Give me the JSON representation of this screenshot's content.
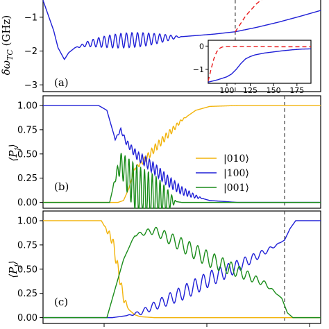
{
  "chart_data": [
    {
      "panel": "a",
      "type": "line",
      "panel_label": "(a)",
      "ylabel": "δω_TC (GHz)",
      "ylim": [
        -3.2,
        -0.45
      ],
      "yticks": [
        -3,
        -2,
        -1
      ],
      "xlim": [
        60,
        190
      ],
      "vline_x": 150,
      "colors": {
        "blue": "#1f1fd6",
        "red": "#e8191b"
      },
      "series": [
        {
          "color_key": "blue",
          "style": "solid",
          "x": [
            60,
            65,
            67,
            70,
            72,
            75,
            78,
            80,
            85,
            90,
            100,
            110,
            120,
            130,
            140,
            150,
            160,
            170,
            180,
            190
          ],
          "y": [
            -0.5,
            -1.4,
            -1.9,
            -2.25,
            -2.05,
            -1.9,
            -1.85,
            -1.8,
            -1.75,
            -1.72,
            -1.68,
            -1.65,
            -1.6,
            -1.55,
            -1.5,
            -1.43,
            -1.3,
            -1.15,
            -0.98,
            -0.8
          ],
          "osc_start": 75,
          "osc_end": 125,
          "osc_amp": 0.22,
          "osc_period": 2.6
        }
      ],
      "extra_series": [
        {
          "color_key": "red",
          "style": "dashed",
          "x": [
            150,
            155,
            160,
            163
          ],
          "y": [
            -1.43,
            -0.95,
            -0.6,
            -0.45
          ]
        }
      ],
      "inset": {
        "xlim": [
          80,
          190
        ],
        "ylim": [
          -1.6,
          0.25
        ],
        "xticks": [
          100,
          125,
          150,
          175
        ],
        "yticks": [
          -1,
          0
        ],
        "series": [
          {
            "color_key": "blue",
            "style": "solid",
            "x": [
              80,
              90,
              100,
              105,
              110,
              115,
              120,
              125,
              130,
              140,
              150,
              160,
              170,
              180,
              190
            ],
            "y": [
              -1.55,
              -1.45,
              -1.32,
              -1.2,
              -1.0,
              -0.75,
              -0.55,
              -0.45,
              -0.38,
              -0.3,
              -0.25,
              -0.2,
              -0.16,
              -0.13,
              -0.12
            ]
          },
          {
            "color_key": "red",
            "style": "dashed",
            "x": [
              80,
              83,
              86,
              89,
              92,
              95,
              100,
              110,
              130,
              150,
              170,
              190
            ],
            "y": [
              -1.5,
              -1.0,
              -0.55,
              -0.25,
              -0.1,
              -0.04,
              -0.02,
              -0.02,
              -0.02,
              -0.03,
              -0.03,
              -0.03
            ]
          }
        ]
      }
    },
    {
      "panel": "b",
      "type": "line",
      "panel_label": "(b)",
      "ylabel": "⟨P_j⟩",
      "ylim": [
        -0.06,
        1.1
      ],
      "yticks": [
        0.0,
        0.25,
        0.5,
        0.75,
        1.0
      ],
      "ytick_labels": [
        "0.00",
        "0.25",
        "0.50",
        "0.75",
        "1.00"
      ],
      "xlim": [
        0,
        100
      ],
      "vline_x": 87,
      "legend": {
        "placement": "right",
        "entries": [
          {
            "label": "|010⟩",
            "color_key": "orange"
          },
          {
            "label": "|100⟩",
            "color_key": "blue"
          },
          {
            "label": "|001⟩",
            "color_key": "green"
          }
        ]
      },
      "colors": {
        "orange": "#f2b40c",
        "blue": "#1f1fd6",
        "green": "#1a8c1a"
      },
      "series": [
        {
          "color_key": "orange",
          "x": [
            0,
            27,
            29,
            31,
            33,
            35,
            37,
            40,
            45,
            50,
            55,
            60,
            70,
            80,
            90,
            100
          ],
          "y": [
            0.0,
            0.0,
            0.02,
            0.15,
            0.35,
            0.4,
            0.45,
            0.55,
            0.7,
            0.85,
            0.95,
            0.99,
            1.0,
            1.0,
            1.0,
            1.0
          ],
          "osc_start": 31,
          "osc_end": 52,
          "osc_amp": 0.04,
          "osc_period": 1.3
        },
        {
          "color_key": "blue",
          "x": [
            0,
            20,
            23,
            26,
            28,
            30,
            32,
            34,
            37,
            40,
            45,
            50,
            55,
            60,
            70,
            100
          ],
          "y": [
            1.0,
            1.0,
            0.95,
            0.65,
            0.75,
            0.62,
            0.55,
            0.48,
            0.42,
            0.35,
            0.22,
            0.12,
            0.06,
            0.02,
            0.0,
            0.0
          ],
          "osc_start": 25,
          "osc_end": 58,
          "osc_amp": 0.06,
          "osc_period": 1.3
        },
        {
          "color_key": "green",
          "x": [
            0,
            24,
            26,
            28,
            30,
            32,
            34,
            36,
            38,
            40,
            45,
            50,
            100
          ],
          "y": [
            0.0,
            0.0,
            0.25,
            0.4,
            0.3,
            0.2,
            0.12,
            0.07,
            0.05,
            0.04,
            0.02,
            0.0,
            0.0
          ],
          "osc_start": 25,
          "osc_end": 48,
          "osc_amp": 0.28,
          "osc_period": 1.4
        }
      ]
    },
    {
      "panel": "c",
      "type": "line",
      "panel_label": "(c)",
      "ylabel": "⟨P_j⟩",
      "ylim": [
        -0.06,
        1.1
      ],
      "yticks": [
        0.0,
        0.25,
        0.5,
        0.75,
        1.0
      ],
      "ytick_labels": [
        "0.00",
        "0.25",
        "0.50",
        "0.75",
        "1.00"
      ],
      "xlim": [
        0,
        100
      ],
      "vline_x": 87,
      "colors": {
        "orange": "#f2b40c",
        "blue": "#1f1fd6",
        "green": "#1a8c1a"
      },
      "series": [
        {
          "color_key": "orange",
          "x": [
            0,
            21,
            23,
            25,
            27,
            29,
            31,
            33,
            35,
            40,
            100
          ],
          "y": [
            1.0,
            1.0,
            0.9,
            0.8,
            0.5,
            0.2,
            0.08,
            0.03,
            0.01,
            0.0,
            0.0
          ],
          "osc_start": 22,
          "osc_end": 31,
          "osc_amp": 0.06,
          "osc_period": 1.5
        },
        {
          "color_key": "blue",
          "x": [
            0,
            25,
            30,
            35,
            40,
            50,
            60,
            70,
            80,
            87,
            89,
            91,
            100
          ],
          "y": [
            0.0,
            0.0,
            0.02,
            0.05,
            0.12,
            0.25,
            0.4,
            0.53,
            0.68,
            0.8,
            0.92,
            1.0,
            1.0
          ],
          "osc_start": 30,
          "osc_end": 86,
          "osc_amp": 0.08,
          "osc_period": 3.0
        },
        {
          "color_key": "green",
          "x": [
            0,
            23,
            26,
            29,
            33,
            40,
            50,
            60,
            70,
            80,
            86,
            88,
            90,
            100
          ],
          "y": [
            0.0,
            0.0,
            0.3,
            0.6,
            0.85,
            0.9,
            0.75,
            0.6,
            0.48,
            0.35,
            0.2,
            0.05,
            0.0,
            0.0
          ],
          "osc_start": 31,
          "osc_end": 85,
          "osc_amp": 0.08,
          "osc_period": 3.0
        }
      ]
    }
  ],
  "inset_label_text": "",
  "xtick_labels_visible": false
}
